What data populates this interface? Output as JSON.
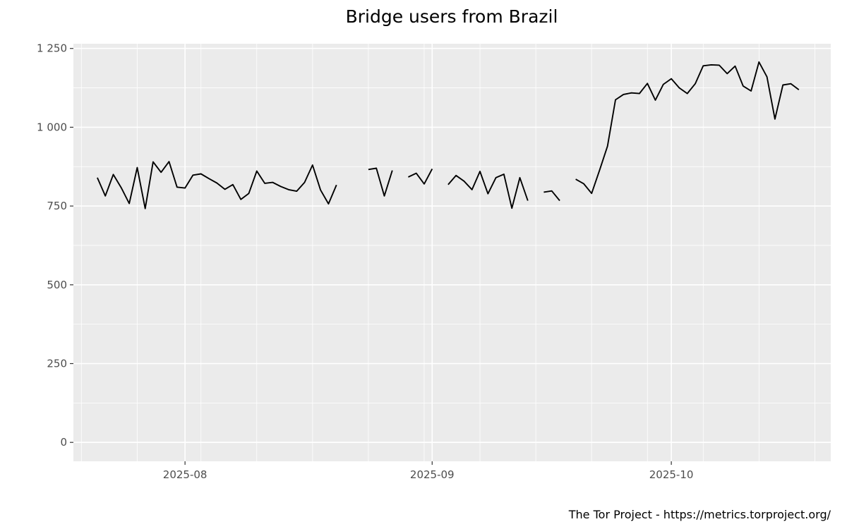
{
  "chart_data": {
    "type": "line",
    "title": "Bridge users from Brazil",
    "caption": "The Tor Project - https://metrics.torproject.org/",
    "xlabel": "",
    "ylabel": "",
    "xlim": [
      "2025-07-18",
      "2025-10-21"
    ],
    "ylim": [
      -60,
      1265
    ],
    "grid": true,
    "legend": "none",
    "colors": {
      "panel_background": "#ebebeb",
      "grid": "#ffffff",
      "line": "#000000",
      "tick_label": "#4d4d4d"
    },
    "x_ticks": [
      {
        "date": "2025-08-01",
        "label": "2025-08"
      },
      {
        "date": "2025-09-01",
        "label": "2025-09"
      },
      {
        "date": "2025-10-01",
        "label": "2025-10"
      }
    ],
    "x_minor_ticks": [
      "2025-07-19",
      "2025-07-26",
      "2025-08-03",
      "2025-08-10",
      "2025-08-17",
      "2025-08-24",
      "2025-08-31",
      "2025-09-07",
      "2025-09-14",
      "2025-09-21",
      "2025-09-28",
      "2025-10-05",
      "2025-10-12",
      "2025-10-19"
    ],
    "y_ticks": [
      {
        "value": 0,
        "label": "0"
      },
      {
        "value": 250,
        "label": "250"
      },
      {
        "value": 500,
        "label": "500"
      },
      {
        "value": 750,
        "label": "750"
      },
      {
        "value": 1000,
        "label": "1 000"
      },
      {
        "value": 1250,
        "label": "1 250"
      }
    ],
    "series": [
      {
        "points": [
          [
            "2025-07-21",
            840
          ],
          [
            "2025-07-22",
            782
          ],
          [
            "2025-07-23",
            850
          ],
          [
            "2025-07-24",
            808
          ],
          [
            "2025-07-25",
            758
          ],
          [
            "2025-07-26",
            872
          ],
          [
            "2025-07-27",
            742
          ],
          [
            "2025-07-28",
            890
          ],
          [
            "2025-07-29",
            857
          ],
          [
            "2025-07-30",
            891
          ],
          [
            "2025-07-31",
            810
          ],
          [
            "2025-08-01",
            807
          ],
          [
            "2025-08-02",
            848
          ],
          [
            "2025-08-03",
            852
          ],
          [
            "2025-08-04",
            837
          ],
          [
            "2025-08-05",
            823
          ],
          [
            "2025-08-06",
            803
          ],
          [
            "2025-08-07",
            818
          ],
          [
            "2025-08-08",
            771
          ],
          [
            "2025-08-09",
            790
          ],
          [
            "2025-08-10",
            861
          ],
          [
            "2025-08-11",
            822
          ],
          [
            "2025-08-12",
            825
          ],
          [
            "2025-08-13",
            812
          ],
          [
            "2025-08-14",
            802
          ],
          [
            "2025-08-15",
            797
          ],
          [
            "2025-08-16",
            825
          ],
          [
            "2025-08-17",
            880
          ],
          [
            "2025-08-18",
            801
          ],
          [
            "2025-08-19",
            757
          ],
          [
            "2025-08-20",
            817
          ],
          [
            "2025-08-21",
            null
          ],
          [
            "2025-08-22",
            null
          ],
          [
            "2025-08-23",
            null
          ],
          [
            "2025-08-24",
            866
          ],
          [
            "2025-08-25",
            870
          ],
          [
            "2025-08-26",
            782
          ],
          [
            "2025-08-27",
            863
          ],
          [
            "2025-08-28",
            null
          ],
          [
            "2025-08-29",
            842
          ],
          [
            "2025-08-30",
            854
          ],
          [
            "2025-08-31",
            820
          ],
          [
            "2025-09-01",
            868
          ],
          [
            "2025-09-02",
            null
          ],
          [
            "2025-09-03",
            818
          ],
          [
            "2025-09-04",
            847
          ],
          [
            "2025-09-05",
            829
          ],
          [
            "2025-09-06",
            802
          ],
          [
            "2025-09-07",
            860
          ],
          [
            "2025-09-08",
            789
          ],
          [
            "2025-09-09",
            840
          ],
          [
            "2025-09-10",
            851
          ],
          [
            "2025-09-11",
            743
          ],
          [
            "2025-09-12",
            840
          ],
          [
            "2025-09-13",
            767
          ],
          [
            "2025-09-14",
            null
          ],
          [
            "2025-09-15",
            794
          ],
          [
            "2025-09-16",
            798
          ],
          [
            "2025-09-17",
            767
          ],
          [
            "2025-09-18",
            null
          ],
          [
            "2025-09-19",
            835
          ],
          [
            "2025-09-20",
            821
          ],
          [
            "2025-09-21",
            790
          ],
          [
            "2025-09-22",
            864
          ],
          [
            "2025-09-23",
            940
          ],
          [
            "2025-09-24",
            1087
          ],
          [
            "2025-09-25",
            1104
          ],
          [
            "2025-09-26",
            1109
          ],
          [
            "2025-09-27",
            1107
          ],
          [
            "2025-09-28",
            1139
          ],
          [
            "2025-09-29",
            1086
          ],
          [
            "2025-09-30",
            1136
          ],
          [
            "2025-10-01",
            1154
          ],
          [
            "2025-10-02",
            1125
          ],
          [
            "2025-10-03",
            1107
          ],
          [
            "2025-10-04",
            1138
          ],
          [
            "2025-10-05",
            1195
          ],
          [
            "2025-10-06",
            1198
          ],
          [
            "2025-10-07",
            1197
          ],
          [
            "2025-10-08",
            1170
          ],
          [
            "2025-10-09",
            1194
          ],
          [
            "2025-10-10",
            1131
          ],
          [
            "2025-10-11",
            1115
          ],
          [
            "2025-10-12",
            1207
          ],
          [
            "2025-10-13",
            1160
          ],
          [
            "2025-10-14",
            1026
          ],
          [
            "2025-10-15",
            1134
          ],
          [
            "2025-10-16",
            1138
          ],
          [
            "2025-10-17",
            1119
          ]
        ]
      }
    ]
  }
}
